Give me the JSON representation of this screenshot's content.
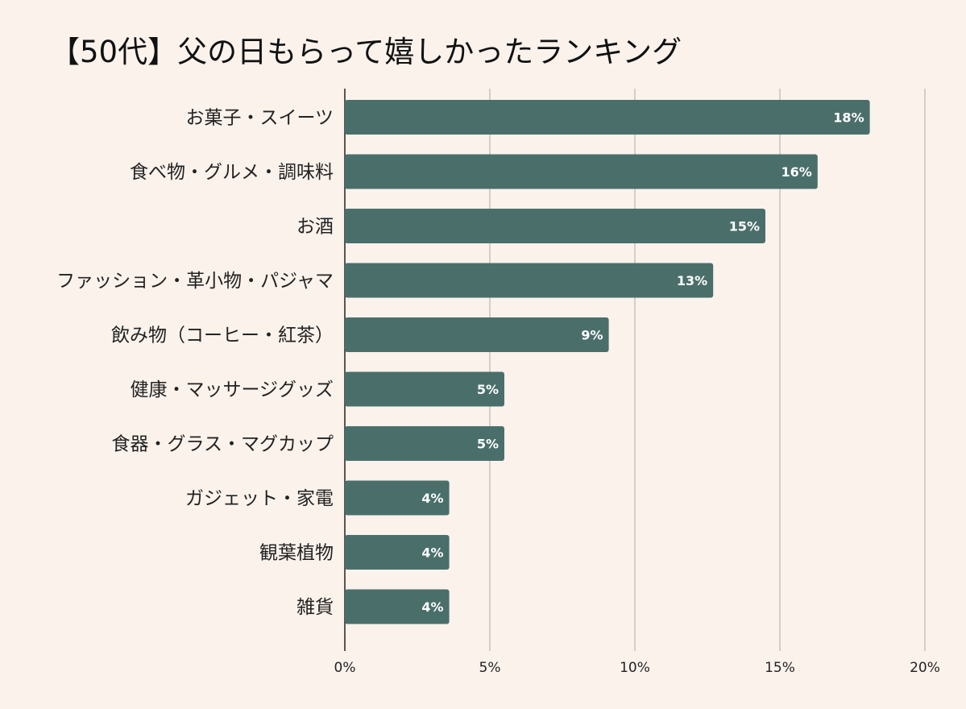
{
  "chart_data": {
    "type": "bar",
    "orientation": "horizontal",
    "title": "【50代】父の日もらって嬉しかったランキング",
    "categories": [
      "お菓子・スイーツ",
      "食べ物・グルメ・調味料",
      "お酒",
      "ファッション・革小物・パジャマ",
      "飲み物（コーヒー・紅茶）",
      "健康・マッサージグッズ",
      "食器・グラス・マグカップ",
      "ガジェット・家電",
      "観葉植物",
      "雑貨"
    ],
    "values": [
      18.1,
      16.3,
      14.5,
      12.7,
      9.1,
      5.5,
      5.5,
      3.6,
      3.6,
      3.6
    ],
    "data_labels": [
      "18%",
      "16%",
      "15%",
      "13%",
      "9%",
      "5%",
      "5%",
      "4%",
      "4%",
      "4%"
    ],
    "xlim": [
      0,
      20
    ],
    "x_ticks": [
      0,
      5,
      10,
      15,
      20
    ],
    "x_tick_labels": [
      "0%",
      "5%",
      "10%",
      "15%",
      "20%"
    ],
    "grid": "vertical",
    "colors": {
      "bar": "#4a6f6b",
      "background": "#fbf2ec",
      "grid": "#c6c1bd",
      "axis": "#222222"
    }
  }
}
